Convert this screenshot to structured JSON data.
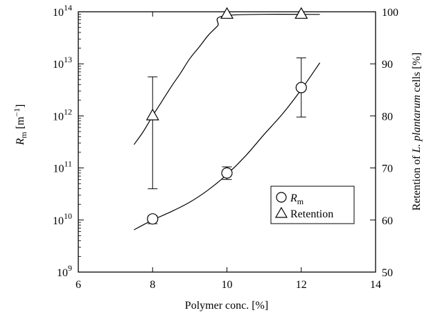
{
  "chart_data": {
    "type": "scatter",
    "xlabel": "Polymer conc. [%]",
    "xlim": [
      6,
      14
    ],
    "x_ticks": [
      "6",
      "8",
      "10",
      "12",
      "14"
    ],
    "y_left": {
      "label_main": "R",
      "label_sub": "m",
      "label_unit_pre": " [m",
      "label_unit_sup": "−1",
      "label_unit_post": "]",
      "scale": "log",
      "lim": [
        1000000000.0,
        100000000000000.0
      ],
      "tick_base": "10",
      "tick_exponents": [
        "9",
        "10",
        "11",
        "12",
        "13",
        "14"
      ]
    },
    "y_right": {
      "label_pre": "Retention of ",
      "label_italic": "L. plantarum",
      "label_post": " cells [%]",
      "lim": [
        50,
        100
      ],
      "ticks": [
        "50",
        "60",
        "70",
        "80",
        "90",
        "100"
      ]
    },
    "series": [
      {
        "name": "R",
        "name_sub": "m",
        "marker": "circle",
        "axis": "left",
        "points": [
          {
            "x": 8,
            "y": 10500000000.0,
            "err_low": 8500000000.0,
            "err_high": 12000000000.0
          },
          {
            "x": 10,
            "y": 80000000000.0,
            "err_low": 60000000000.0,
            "err_high": 105000000000.0
          },
          {
            "x": 12,
            "y": 3500000000000.0,
            "err_low": 950000000000.0,
            "err_high": 13000000000000.0
          }
        ],
        "fit": [
          [
            7.5,
            6500000000.0
          ],
          [
            8,
            10000000000.0
          ],
          [
            8.5,
            14500000000.0
          ],
          [
            9,
            22000000000.0
          ],
          [
            9.5,
            38000000000.0
          ],
          [
            10,
            75000000000.0
          ],
          [
            10.5,
            170000000000.0
          ],
          [
            11,
            440000000000.0
          ],
          [
            11.5,
            1100000000000.0
          ],
          [
            12,
            3200000000000.0
          ],
          [
            12.5,
            10500000000000.0
          ]
        ]
      },
      {
        "name": "Retention",
        "marker": "triangle",
        "axis": "right",
        "points": [
          {
            "x": 8,
            "y": 80.0,
            "err_low": 66.0,
            "err_high": 87.5
          },
          {
            "x": 10,
            "y": 99.5
          },
          {
            "x": 12,
            "y": 99.5
          }
        ],
        "fit": [
          [
            7.5,
            74.5
          ],
          [
            7.75,
            77.0
          ],
          [
            8,
            80.0
          ],
          [
            8.25,
            82.8
          ],
          [
            8.5,
            85.6
          ],
          [
            8.75,
            88.2
          ],
          [
            9,
            91.0
          ],
          [
            9.25,
            93.2
          ],
          [
            9.5,
            95.5
          ],
          [
            9.75,
            97.3
          ],
          [
            10,
            99.3
          ],
          [
            12.5,
            99.5
          ]
        ]
      }
    ],
    "legend": {
      "position": "lower-right"
    }
  }
}
